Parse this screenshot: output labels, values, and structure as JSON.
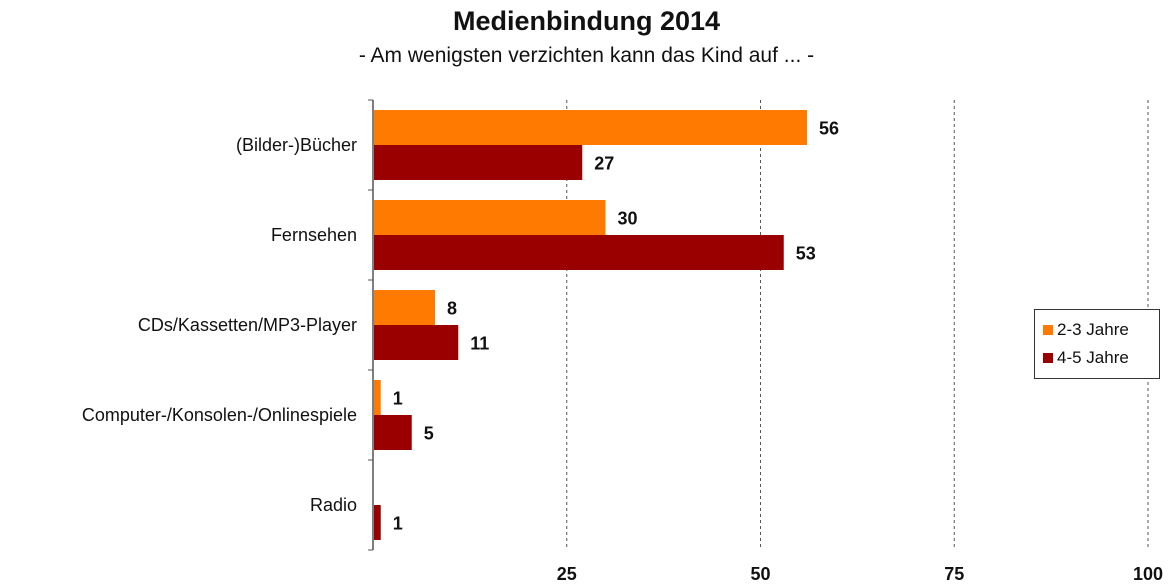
{
  "chart_data": {
    "type": "bar",
    "orientation": "horizontal",
    "title": "Medienbindung 2014",
    "subtitle": "- Am wenigsten verzichten kann das Kind auf ... -",
    "categories": [
      "(Bilder-)Bücher",
      "Fernsehen",
      "CDs/Kassetten/MP3-Player",
      "Computer-/Konsolen-/Onlinespiele",
      "Radio"
    ],
    "series": [
      {
        "name": "2-3 Jahre",
        "color": "#ff7a00",
        "values": [
          56,
          30,
          8,
          1,
          null
        ]
      },
      {
        "name": "4-5 Jahre",
        "color": "#9a0000",
        "values": [
          27,
          53,
          11,
          5,
          1
        ]
      }
    ],
    "xlim": [
      0,
      100
    ],
    "xticks": [
      "25",
      "50",
      "75",
      "100"
    ],
    "grid": "vertical dashed",
    "legend": "right"
  }
}
